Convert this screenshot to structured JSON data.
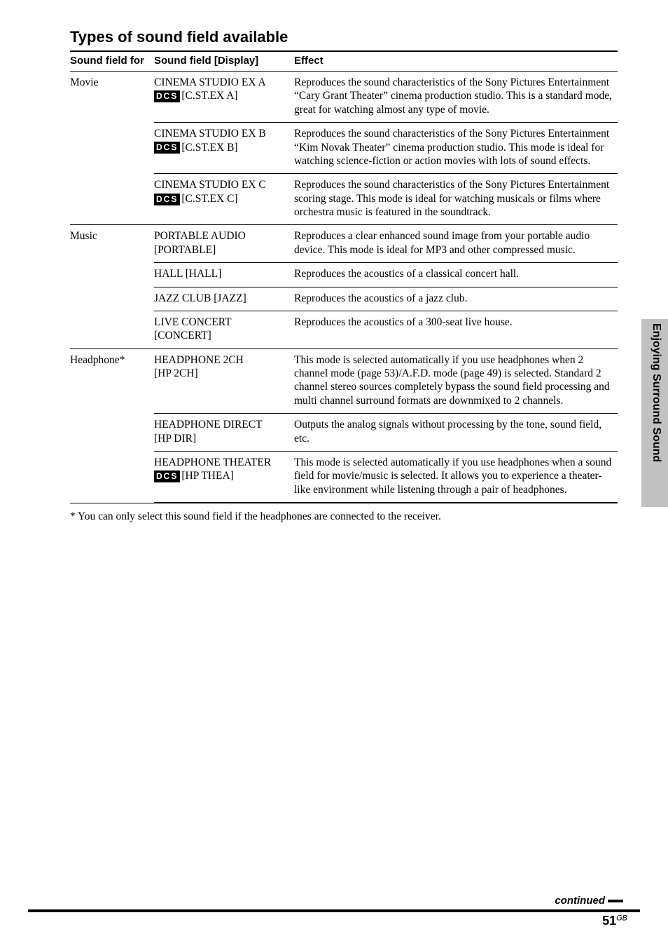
{
  "section_title": "Types of sound field available",
  "columns": {
    "for": "Sound field for",
    "field": "Sound field [Display]",
    "effect": "Effect"
  },
  "dcs_label": "DCS",
  "table": [
    {
      "category": "Movie",
      "items": [
        {
          "name": "CINEMA STUDIO EX A",
          "dcs": true,
          "display": "[C.ST.EX A]",
          "effect": "Reproduces the sound characteristics of the Sony Pictures Entertainment “Cary Grant Theater” cinema production studio. This is a standard mode, great for watching almost any type of movie."
        },
        {
          "name": "CINEMA STUDIO EX B",
          "dcs": true,
          "display": "[C.ST.EX B]",
          "effect": "Reproduces the sound characteristics of the Sony Pictures Entertainment “Kim Novak Theater” cinema production studio. This mode is ideal for watching science-fiction or action movies with lots of sound effects."
        },
        {
          "name": "CINEMA STUDIO EX C",
          "dcs": true,
          "display": "[C.ST.EX C]",
          "effect": "Reproduces the sound characteristics of the Sony Pictures Entertainment scoring stage. This mode is ideal for watching musicals or films where orchestra music is featured in the soundtrack."
        }
      ]
    },
    {
      "category": "Music",
      "items": [
        {
          "name": "PORTABLE AUDIO",
          "dcs": false,
          "display": "[PORTABLE]",
          "effect": "Reproduces a clear enhanced sound image from your portable audio device. This mode is ideal for MP3 and other compressed music."
        },
        {
          "name": "HALL",
          "dcs": false,
          "display": "[HALL]",
          "inline": true,
          "effect": "Reproduces the acoustics of a classical concert hall."
        },
        {
          "name": "JAZZ CLUB",
          "dcs": false,
          "display": "[JAZZ]",
          "inline": true,
          "effect": "Reproduces the acoustics of a jazz club."
        },
        {
          "name": "LIVE CONCERT",
          "dcs": false,
          "display": "[CONCERT]",
          "effect": "Reproduces the acoustics of a 300-seat live house."
        }
      ]
    },
    {
      "category": "Headphone*",
      "items": [
        {
          "name": "HEADPHONE 2CH",
          "dcs": false,
          "display": "[HP 2CH]",
          "effect": "This mode is selected automatically if you use headphones when 2 channel mode (page 53)/A.F.D. mode (page 49) is selected. Standard 2 channel stereo sources completely bypass the sound field processing and multi channel surround formats are downmixed to 2 channels."
        },
        {
          "name": "HEADPHONE DIRECT",
          "dcs": false,
          "display": "[HP DIR]",
          "effect": "Outputs the analog signals without processing by the tone, sound field, etc."
        },
        {
          "name": "HEADPHONE THEATER",
          "dcs": true,
          "display": "[HP THEA]",
          "effect": "This mode is selected automatically if you use headphones when a sound field for movie/music is selected. It allows you to experience a theater-like environment while listening through a pair of headphones."
        }
      ]
    }
  ],
  "footnote": "* You can only select this sound field if the headphones are connected to the receiver.",
  "side_tab": "Enjoying Surround Sound",
  "continued": "continued",
  "page_number": "51",
  "page_suffix": "GB"
}
